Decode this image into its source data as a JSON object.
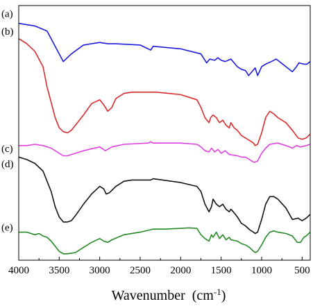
{
  "chart_data": {
    "type": "line",
    "title": "",
    "xlabel": "Wavenumber",
    "xlabel_unit_base": "cm",
    "xlabel_unit_exponent": "-1",
    "ylabel": "",
    "xlim": [
      4000,
      400
    ],
    "x_reversed": true,
    "y_ticks_shown": false,
    "grid": false,
    "x_ticks": [
      4000,
      3500,
      3000,
      2500,
      2000,
      1500,
      1000,
      500
    ],
    "x_tick_labels": [
      "4000",
      "3500",
      "3000",
      "2500",
      "2000",
      "1500",
      "1000",
      "500"
    ],
    "ylim": [
      0,
      100
    ],
    "series": [
      {
        "name": "(a)",
        "color": "#1a1adb",
        "label_y": 95,
        "points": [
          [
            4000,
            93
          ],
          [
            3800,
            92
          ],
          [
            3650,
            90
          ],
          [
            3550,
            84
          ],
          [
            3450,
            78
          ],
          [
            3350,
            81
          ],
          [
            3200,
            84.5
          ],
          [
            3000,
            85.5
          ],
          [
            2900,
            85
          ],
          [
            2800,
            85
          ],
          [
            2500,
            84.5
          ],
          [
            2370,
            82.5
          ],
          [
            2340,
            84
          ],
          [
            2000,
            83
          ],
          [
            1750,
            81
          ],
          [
            1680,
            77.5
          ],
          [
            1640,
            79
          ],
          [
            1580,
            78.5
          ],
          [
            1540,
            79.5
          ],
          [
            1500,
            78.5
          ],
          [
            1450,
            78
          ],
          [
            1380,
            79
          ],
          [
            1300,
            76
          ],
          [
            1250,
            75
          ],
          [
            1200,
            74.5
          ],
          [
            1160,
            72.5
          ],
          [
            1120,
            74
          ],
          [
            1080,
            75.5
          ],
          [
            1050,
            72.5
          ],
          [
            1000,
            76
          ],
          [
            950,
            77
          ],
          [
            880,
            78
          ],
          [
            820,
            79
          ],
          [
            780,
            78
          ],
          [
            700,
            76
          ],
          [
            620,
            74
          ],
          [
            570,
            76
          ],
          [
            540,
            77.5
          ],
          [
            480,
            77
          ],
          [
            440,
            77
          ],
          [
            400,
            78
          ]
        ]
      },
      {
        "name": "(b)",
        "color": "#d92b2b",
        "label_y": 88,
        "points": [
          [
            4000,
            87
          ],
          [
            3900,
            85
          ],
          [
            3800,
            82
          ],
          [
            3700,
            76
          ],
          [
            3650,
            68
          ],
          [
            3600,
            62
          ],
          [
            3550,
            56
          ],
          [
            3500,
            52
          ],
          [
            3450,
            50.5
          ],
          [
            3400,
            50
          ],
          [
            3350,
            51
          ],
          [
            3300,
            53
          ],
          [
            3200,
            57
          ],
          [
            3100,
            61.5
          ],
          [
            3000,
            63
          ],
          [
            2950,
            61
          ],
          [
            2900,
            58.5
          ],
          [
            2850,
            60
          ],
          [
            2800,
            63.5
          ],
          [
            2700,
            65.5
          ],
          [
            2600,
            66
          ],
          [
            2500,
            66
          ],
          [
            2300,
            66
          ],
          [
            2000,
            65
          ],
          [
            1800,
            63
          ],
          [
            1750,
            60
          ],
          [
            1700,
            56
          ],
          [
            1650,
            54
          ],
          [
            1630,
            56
          ],
          [
            1600,
            57
          ],
          [
            1560,
            56
          ],
          [
            1520,
            54
          ],
          [
            1480,
            55
          ],
          [
            1440,
            53
          ],
          [
            1400,
            52
          ],
          [
            1380,
            54
          ],
          [
            1340,
            52
          ],
          [
            1300,
            51
          ],
          [
            1250,
            49
          ],
          [
            1200,
            48
          ],
          [
            1150,
            47
          ],
          [
            1100,
            46
          ],
          [
            1080,
            45
          ],
          [
            1050,
            45.5
          ],
          [
            1000,
            50
          ],
          [
            950,
            56
          ],
          [
            900,
            58.5
          ],
          [
            850,
            57.5
          ],
          [
            800,
            56
          ],
          [
            700,
            54
          ],
          [
            620,
            51
          ],
          [
            550,
            48
          ],
          [
            500,
            47.5
          ],
          [
            450,
            48
          ],
          [
            400,
            49.5
          ]
        ]
      },
      {
        "name": "(c)",
        "color": "#e040e0",
        "label_y": 42,
        "points": [
          [
            4000,
            45
          ],
          [
            3900,
            45
          ],
          [
            3800,
            45.5
          ],
          [
            3700,
            45
          ],
          [
            3600,
            44
          ],
          [
            3500,
            42
          ],
          [
            3450,
            41
          ],
          [
            3400,
            41
          ],
          [
            3300,
            42
          ],
          [
            3200,
            43
          ],
          [
            3000,
            44.5
          ],
          [
            2930,
            43
          ],
          [
            2850,
            44.5
          ],
          [
            2700,
            45.5
          ],
          [
            2400,
            46
          ],
          [
            2370,
            46.5
          ],
          [
            2340,
            46
          ],
          [
            2000,
            46
          ],
          [
            1800,
            45.5
          ],
          [
            1750,
            44.5
          ],
          [
            1700,
            43
          ],
          [
            1650,
            42.5
          ],
          [
            1620,
            44
          ],
          [
            1580,
            42.5
          ],
          [
            1540,
            43.5
          ],
          [
            1500,
            42
          ],
          [
            1450,
            43
          ],
          [
            1400,
            41.5
          ],
          [
            1300,
            41
          ],
          [
            1250,
            40.5
          ],
          [
            1200,
            40.5
          ],
          [
            1150,
            39.5
          ],
          [
            1100,
            38.5
          ],
          [
            1080,
            38.5
          ],
          [
            1050,
            39
          ],
          [
            1000,
            42
          ],
          [
            950,
            44
          ],
          [
            900,
            45.5
          ],
          [
            800,
            46
          ],
          [
            700,
            45
          ],
          [
            620,
            44
          ],
          [
            570,
            45
          ],
          [
            520,
            44.5
          ],
          [
            450,
            45
          ],
          [
            400,
            45.5
          ]
        ]
      },
      {
        "name": "(d)",
        "color": "#111111",
        "label_y": 36,
        "points": [
          [
            4000,
            40.5
          ],
          [
            3900,
            39.5
          ],
          [
            3800,
            38
          ],
          [
            3700,
            35
          ],
          [
            3600,
            27
          ],
          [
            3550,
            21
          ],
          [
            3500,
            17
          ],
          [
            3450,
            15
          ],
          [
            3400,
            15
          ],
          [
            3350,
            15.5
          ],
          [
            3300,
            17.5
          ],
          [
            3200,
            22
          ],
          [
            3100,
            26
          ],
          [
            3000,
            29
          ],
          [
            2950,
            28
          ],
          [
            2920,
            26
          ],
          [
            2880,
            26.5
          ],
          [
            2800,
            29
          ],
          [
            2700,
            31
          ],
          [
            2600,
            31.5
          ],
          [
            2500,
            31.5
          ],
          [
            2370,
            31.5
          ],
          [
            2340,
            32
          ],
          [
            2000,
            30.5
          ],
          [
            1800,
            29
          ],
          [
            1750,
            27
          ],
          [
            1700,
            22
          ],
          [
            1650,
            19
          ],
          [
            1620,
            21
          ],
          [
            1600,
            24
          ],
          [
            1560,
            22
          ],
          [
            1520,
            21
          ],
          [
            1480,
            22
          ],
          [
            1440,
            20
          ],
          [
            1400,
            19
          ],
          [
            1380,
            20
          ],
          [
            1350,
            19
          ],
          [
            1300,
            17
          ],
          [
            1250,
            14.5
          ],
          [
            1200,
            13.5
          ],
          [
            1150,
            12
          ],
          [
            1100,
            11
          ],
          [
            1080,
            10.5
          ],
          [
            1050,
            11
          ],
          [
            1000,
            16
          ],
          [
            950,
            22
          ],
          [
            900,
            25
          ],
          [
            850,
            25
          ],
          [
            800,
            24
          ],
          [
            700,
            20.5
          ],
          [
            620,
            16
          ],
          [
            550,
            16.5
          ],
          [
            500,
            15.5
          ],
          [
            450,
            16.5
          ],
          [
            400,
            18
          ]
        ]
      },
      {
        "name": "(e)",
        "color": "#248a24",
        "label_y": 11,
        "points": [
          [
            4000,
            11
          ],
          [
            3900,
            11
          ],
          [
            3850,
            10.5
          ],
          [
            3800,
            10
          ],
          [
            3750,
            10.5
          ],
          [
            3700,
            9.5
          ],
          [
            3650,
            9
          ],
          [
            3600,
            7.5
          ],
          [
            3550,
            5.5
          ],
          [
            3500,
            3.5
          ],
          [
            3450,
            2.5
          ],
          [
            3400,
            2.5
          ],
          [
            3300,
            3
          ],
          [
            3200,
            5
          ],
          [
            3100,
            7
          ],
          [
            3000,
            8.5
          ],
          [
            2950,
            7.5
          ],
          [
            2900,
            7
          ],
          [
            2850,
            8
          ],
          [
            2700,
            10
          ],
          [
            2500,
            11
          ],
          [
            2370,
            12
          ],
          [
            2340,
            12.2
          ],
          [
            2200,
            12.2
          ],
          [
            2000,
            12.5
          ],
          [
            1900,
            12.7
          ],
          [
            1800,
            12.5
          ],
          [
            1750,
            10
          ],
          [
            1700,
            8.5
          ],
          [
            1650,
            7.5
          ],
          [
            1620,
            10
          ],
          [
            1600,
            9
          ],
          [
            1560,
            11
          ],
          [
            1520,
            8.5
          ],
          [
            1480,
            10
          ],
          [
            1440,
            8
          ],
          [
            1400,
            9
          ],
          [
            1380,
            8
          ],
          [
            1300,
            7.5
          ],
          [
            1250,
            6.5
          ],
          [
            1200,
            6
          ],
          [
            1150,
            5
          ],
          [
            1100,
            3.5
          ],
          [
            1080,
            3
          ],
          [
            1050,
            3.5
          ],
          [
            1000,
            6
          ],
          [
            950,
            9
          ],
          [
            900,
            11
          ],
          [
            850,
            11.5
          ],
          [
            800,
            11
          ],
          [
            700,
            10.5
          ],
          [
            620,
            9.5
          ],
          [
            560,
            7
          ],
          [
            520,
            7
          ],
          [
            480,
            9
          ],
          [
            450,
            9.5
          ],
          [
            400,
            11
          ]
        ]
      }
    ]
  }
}
